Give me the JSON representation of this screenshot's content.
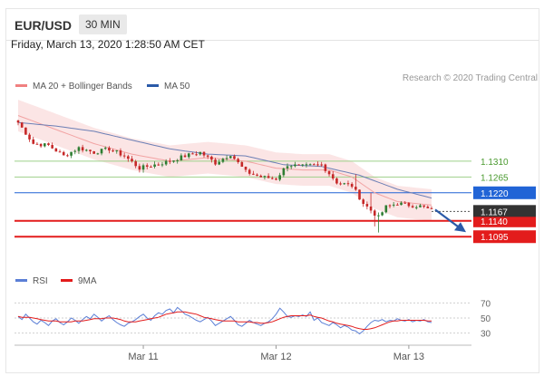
{
  "header": {
    "pair": "EUR/USD",
    "timeframe": "30 MIN"
  },
  "timestamp": "Friday, March 13, 2020 1:28:50 AM CET",
  "legend": {
    "items": [
      {
        "label": "MA 20 + Bollinger Bands",
        "color": "#f08080"
      },
      {
        "label": "MA 50",
        "color": "#2b5aa8"
      }
    ],
    "credit": "Research © 2020 Trading Central"
  },
  "rsi_legend": {
    "items": [
      {
        "label": "RSI",
        "color": "#5b7fd6"
      },
      {
        "label": "9MA",
        "color": "#e31c1c"
      }
    ]
  },
  "colors": {
    "up": "#2e7d32",
    "down": "#c62828",
    "bands": "#fadada",
    "resistance": "#9ed08a",
    "pivot": "#2164d6",
    "support": "#e31c1c"
  },
  "chart_data": [
    {
      "type": "candlestick",
      "title": "EUR/USD 30 MIN",
      "x_tick_labels": [
        "Mar 11",
        "Mar 12",
        "Mar 13"
      ],
      "x_tick_index": [
        33,
        68,
        103
      ],
      "n_candles": 110,
      "ylim": [
        1.0995,
        1.148
      ],
      "levels": [
        {
          "value": 1.131,
          "label": "1.1310",
          "kind": "resistance"
        },
        {
          "value": 1.1265,
          "label": "1.1265",
          "kind": "resistance"
        },
        {
          "value": 1.122,
          "label": "1.1220",
          "kind": "pivot"
        },
        {
          "value": 1.114,
          "label": "1.1140",
          "kind": "support"
        },
        {
          "value": 1.1095,
          "label": "1.1095",
          "kind": "support"
        }
      ],
      "last_price": {
        "value": 1.1167,
        "label": "1.1167"
      },
      "forecast": {
        "direction": "down",
        "from": 1.1172,
        "to": 1.1108
      },
      "close_anchors": [
        [
          0,
          1.142
        ],
        [
          4,
          1.136
        ],
        [
          8,
          1.1355
        ],
        [
          12,
          1.1325
        ],
        [
          16,
          1.1348
        ],
        [
          20,
          1.1335
        ],
        [
          24,
          1.1345
        ],
        [
          28,
          1.1325
        ],
        [
          32,
          1.129
        ],
        [
          36,
          1.13
        ],
        [
          40,
          1.131
        ],
        [
          44,
          1.1325
        ],
        [
          48,
          1.1335
        ],
        [
          52,
          1.1305
        ],
        [
          56,
          1.133
        ],
        [
          60,
          1.128
        ],
        [
          64,
          1.1265
        ],
        [
          68,
          1.126
        ],
        [
          71,
          1.13
        ],
        [
          75,
          1.1295
        ],
        [
          80,
          1.13
        ],
        [
          84,
          1.125
        ],
        [
          88,
          1.124
        ],
        [
          91,
          1.119
        ],
        [
          95,
          1.115
        ],
        [
          97,
          1.118
        ],
        [
          100,
          1.119
        ],
        [
          103,
          1.1185
        ],
        [
          106,
          1.1182
        ],
        [
          109,
          1.117
        ]
      ],
      "ma20_anchors": [
        [
          0,
          1.144
        ],
        [
          10,
          1.14
        ],
        [
          20,
          1.136
        ],
        [
          30,
          1.133
        ],
        [
          40,
          1.131
        ],
        [
          50,
          1.132
        ],
        [
          60,
          1.131
        ],
        [
          68,
          1.129
        ],
        [
          75,
          1.1285
        ],
        [
          82,
          1.1285
        ],
        [
          88,
          1.1265
        ],
        [
          94,
          1.122
        ],
        [
          100,
          1.1195
        ],
        [
          109,
          1.1185
        ]
      ],
      "ma50_anchors": [
        [
          0,
          1.142
        ],
        [
          10,
          1.141
        ],
        [
          20,
          1.1395
        ],
        [
          30,
          1.137
        ],
        [
          40,
          1.1345
        ],
        [
          50,
          1.133
        ],
        [
          60,
          1.1325
        ],
        [
          70,
          1.13
        ],
        [
          80,
          1.1295
        ],
        [
          90,
          1.127
        ],
        [
          100,
          1.123
        ],
        [
          109,
          1.1205
        ]
      ],
      "band_width": 0.0045
    },
    {
      "type": "line",
      "title": "RSI",
      "ylim": [
        20,
        80
      ],
      "y_ticks": [
        70,
        50,
        30
      ],
      "series": [
        {
          "name": "RSI",
          "values": [
            52,
            48,
            55,
            50,
            45,
            42,
            47,
            44,
            40,
            46,
            49,
            44,
            41,
            45,
            50,
            47,
            43,
            48,
            52,
            49,
            55,
            51,
            46,
            50,
            53,
            48,
            44,
            41,
            39,
            43,
            45,
            48,
            52,
            55,
            50,
            47,
            53,
            57,
            55,
            60,
            62,
            57,
            64,
            60,
            55,
            53,
            50,
            47,
            45,
            48,
            51,
            46,
            40,
            43,
            46,
            49,
            52,
            47,
            41,
            39,
            43,
            47,
            44,
            42,
            40,
            43,
            45,
            49,
            55,
            63,
            58,
            52,
            51,
            53,
            52,
            54,
            52,
            58,
            47,
            50,
            44,
            42,
            40,
            44,
            41,
            37,
            40,
            38,
            34,
            33,
            29,
            33,
            39,
            44,
            47,
            46,
            48,
            45,
            47,
            46,
            49,
            47,
            46,
            48,
            45,
            47,
            46,
            48,
            45,
            44
          ]
        },
        {
          "name": "9MA",
          "values": [
            52,
            51,
            51,
            51,
            50,
            49,
            48,
            47,
            46,
            46,
            46,
            45,
            45,
            45,
            45,
            46,
            46,
            46,
            47,
            48,
            49,
            49,
            49,
            50,
            50,
            50,
            49,
            48,
            46,
            45,
            45,
            45,
            46,
            47,
            48,
            49,
            50,
            51,
            53,
            55,
            56,
            57,
            58,
            58,
            58,
            57,
            56,
            55,
            53,
            51,
            50,
            49,
            48,
            47,
            46,
            46,
            46,
            46,
            45,
            45,
            45,
            45,
            44,
            44,
            43,
            43,
            44,
            45,
            47,
            49,
            51,
            52,
            53,
            53,
            53,
            53,
            53,
            54,
            52,
            51,
            50,
            48,
            46,
            45,
            43,
            42,
            41,
            40,
            39,
            37,
            36,
            35,
            35,
            36,
            37,
            39,
            41,
            43,
            45,
            46,
            46,
            47,
            47,
            47,
            47,
            47,
            47,
            47,
            46,
            46
          ]
        }
      ]
    }
  ]
}
